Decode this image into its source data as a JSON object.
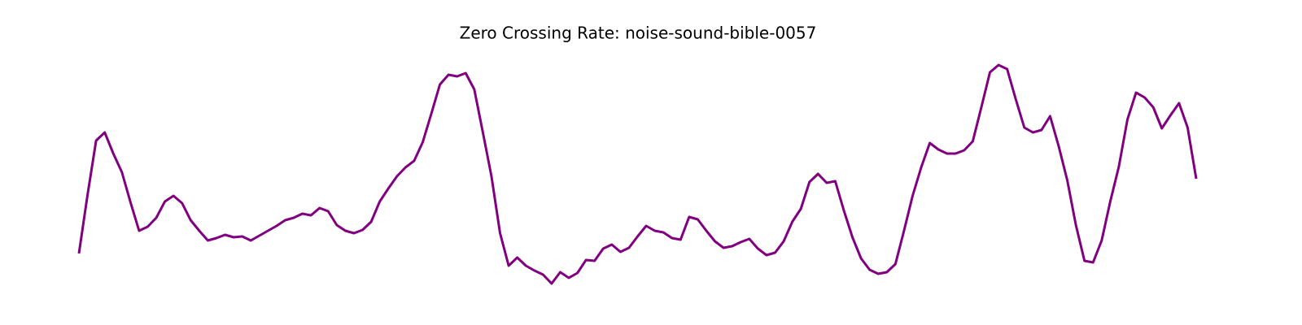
{
  "chart_data": {
    "type": "line",
    "title": "Zero Crossing Rate: noise-sound-bible-0057",
    "x": [
      0,
      1,
      2,
      3,
      4,
      5,
      6,
      7,
      8,
      9,
      10,
      11,
      12,
      13,
      14,
      15,
      16,
      17,
      18,
      19,
      20,
      21,
      22,
      23,
      24,
      25,
      26,
      27,
      28,
      29,
      30,
      31,
      32,
      33,
      34,
      35,
      36,
      37,
      38,
      39,
      40,
      41,
      42,
      43,
      44,
      45,
      46,
      47,
      48,
      49,
      50,
      51,
      52,
      53,
      54,
      55,
      56,
      57,
      58,
      59,
      60,
      61,
      62,
      63,
      64,
      65,
      66,
      67,
      68,
      69,
      70,
      71,
      72,
      73,
      74,
      75,
      76,
      77,
      78,
      79,
      80,
      81,
      82,
      83,
      84,
      85,
      86,
      87,
      88,
      89,
      90,
      91,
      92,
      93,
      94,
      95,
      96,
      97,
      98,
      99,
      100,
      101,
      102,
      103,
      104,
      105,
      106,
      107,
      108,
      109,
      110,
      111,
      112,
      113,
      114,
      115,
      116,
      117,
      118,
      119,
      120,
      121,
      122,
      123,
      124,
      125,
      126,
      127,
      128,
      129,
      130
    ],
    "values": [
      0.048,
      0.12,
      0.187,
      0.197,
      0.171,
      0.148,
      0.111,
      0.076,
      0.081,
      0.092,
      0.112,
      0.119,
      0.11,
      0.089,
      0.076,
      0.064,
      0.067,
      0.071,
      0.068,
      0.069,
      0.064,
      0.07,
      0.076,
      0.082,
      0.089,
      0.092,
      0.097,
      0.095,
      0.104,
      0.1,
      0.083,
      0.076,
      0.073,
      0.077,
      0.087,
      0.112,
      0.128,
      0.143,
      0.154,
      0.162,
      0.185,
      0.22,
      0.256,
      0.268,
      0.266,
      0.27,
      0.25,
      0.197,
      0.143,
      0.073,
      0.033,
      0.043,
      0.033,
      0.027,
      0.022,
      0.011,
      0.025,
      0.018,
      0.024,
      0.04,
      0.039,
      0.054,
      0.059,
      0.05,
      0.055,
      0.069,
      0.082,
      0.076,
      0.074,
      0.067,
      0.065,
      0.093,
      0.09,
      0.076,
      0.063,
      0.055,
      0.057,
      0.062,
      0.066,
      0.054,
      0.046,
      0.049,
      0.063,
      0.087,
      0.103,
      0.136,
      0.146,
      0.135,
      0.137,
      0.101,
      0.068,
      0.042,
      0.028,
      0.023,
      0.025,
      0.035,
      0.076,
      0.119,
      0.154,
      0.184,
      0.176,
      0.171,
      0.171,
      0.175,
      0.186,
      0.228,
      0.271,
      0.28,
      0.275,
      0.238,
      0.203,
      0.197,
      0.2,
      0.217,
      0.18,
      0.138,
      0.083,
      0.039,
      0.037,
      0.064,
      0.112,
      0.155,
      0.213,
      0.246,
      0.24,
      0.228,
      0.202,
      0.218,
      0.233,
      0.203,
      0.14
    ],
    "color": "#800080",
    "xlim": [
      0,
      130
    ],
    "ylim": [
      0,
      0.3
    ]
  }
}
